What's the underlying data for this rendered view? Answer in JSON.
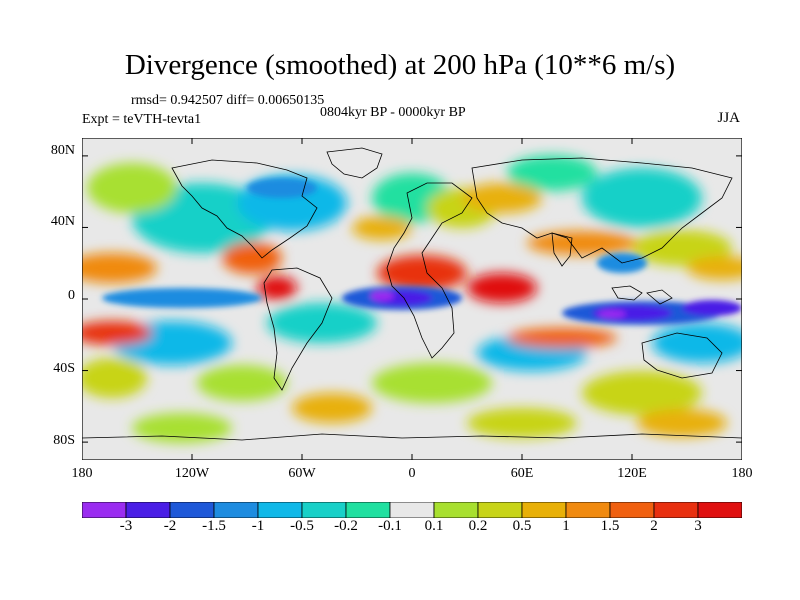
{
  "title": "Divergence (smoothed) at 200 hPa (10**6 m/s)",
  "stats": "rmsd= 0.942507 diff= 0.00650135",
  "experiment": "Expt = teVTH-tevta1",
  "period": "0804kyr BP - 0000kyr BP",
  "season": "JJA",
  "y_ticks": [
    "80N",
    "40N",
    "0",
    "40S",
    "80S"
  ],
  "x_ticks": [
    "180",
    "120W",
    "60W",
    "0",
    "60E",
    "120E",
    "180"
  ],
  "colorbar": {
    "labels": [
      "-3",
      "-2",
      "-1.5",
      "-1",
      "-0.5",
      "-0.2",
      "-0.1",
      "0.1",
      "0.2",
      "0.5",
      "1",
      "1.5",
      "2",
      "3"
    ],
    "colors": [
      "#9a2cf0",
      "#4a1ee6",
      "#1e58d8",
      "#1e8ce0",
      "#10b8e8",
      "#18d0c8",
      "#20e0a0",
      "#e8e8e8",
      "#a8e030",
      "#c8d418",
      "#e8b008",
      "#f08a10",
      "#f06010",
      "#e83010",
      "#e01010"
    ]
  },
  "map_features": [
    {
      "name": "negative-band-equatorial-atlantic",
      "lon": -25,
      "lat": 0,
      "value": -3
    },
    {
      "name": "negative-band-west-pacific",
      "lon": 140,
      "lat": -2,
      "value": -3
    },
    {
      "name": "positive-band-south-america",
      "lon": -60,
      "lat": 8,
      "value": 3
    },
    {
      "name": "positive-band-africa",
      "lon": 20,
      "lat": 10,
      "value": 3
    },
    {
      "name": "positive-band-indian-ocean",
      "lon": 75,
      "lat": 5,
      "value": 3
    },
    {
      "name": "positive-band-central-pacific",
      "lon": -150,
      "lat": 10,
      "value": 2
    }
  ]
}
